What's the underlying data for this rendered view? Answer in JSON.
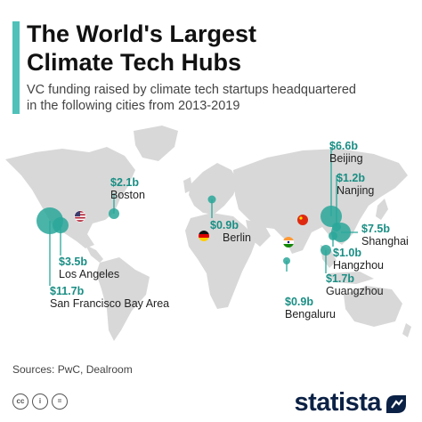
{
  "header": {
    "title_line1": "The World's Largest",
    "title_line2": "Climate Tech Hubs",
    "subtitle_line1": "VC funding raised by climate tech startups headquartered",
    "subtitle_line2": "in the following cities from 2013-2019"
  },
  "colors": {
    "accent": "#4fc1b9",
    "bubble": "#2aa79a",
    "land": "#d8d8d8",
    "value_text": "#1a8e84"
  },
  "hubs": [
    {
      "value": "$2.1b",
      "city": "Boston"
    },
    {
      "value": "$0.9b",
      "city": "Berlin"
    },
    {
      "value": "$3.5b",
      "city": "Los Angeles"
    },
    {
      "value": "$11.7b",
      "city": "San Francisco Bay Area"
    },
    {
      "value": "$6.6b",
      "city": "Beijing"
    },
    {
      "value": "$1.2b",
      "city": "Nanjing"
    },
    {
      "value": "$7.5b",
      "city": "Shanghai"
    },
    {
      "value": "$1.0b",
      "city": "Hangzhou"
    },
    {
      "value": "$1.7b",
      "city": "Guangzhou"
    },
    {
      "value": "$0.9b",
      "city": "Bengaluru"
    }
  ],
  "flags": [
    "us-flag-icon",
    "germany-flag-icon",
    "china-flag-icon",
    "india-flag-icon"
  ],
  "footer": {
    "sources": "Sources: PwC, Dealroom",
    "logo": "statista"
  }
}
